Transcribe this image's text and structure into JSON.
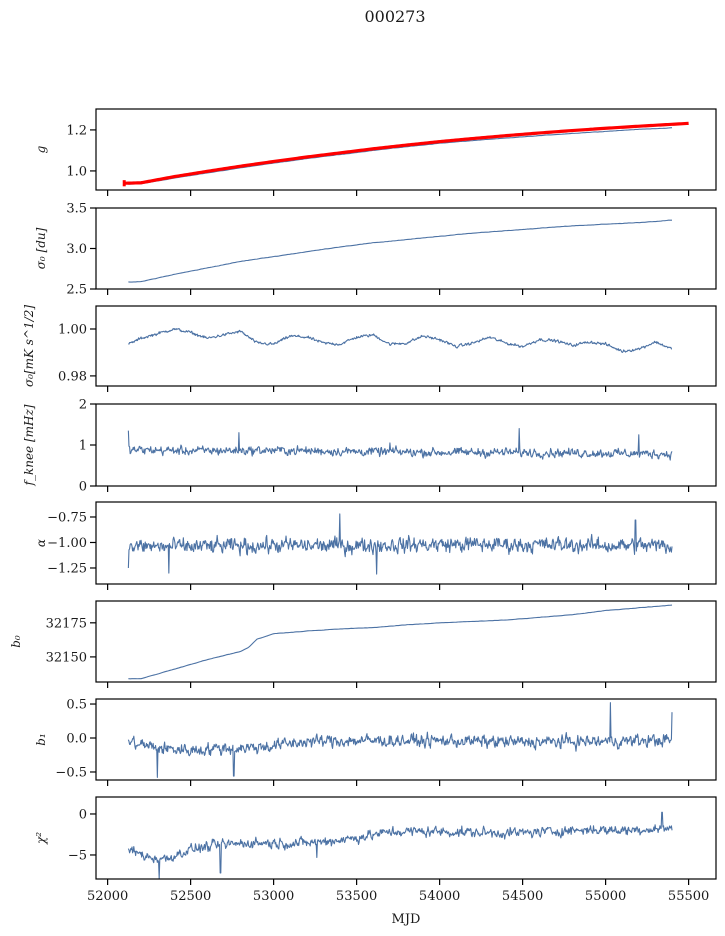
{
  "chart_data": {
    "type": "line",
    "title": "000273",
    "xlabel": "MJD",
    "xlim": [
      51930,
      55665
    ],
    "xticks": [
      52000,
      52500,
      53000,
      53500,
      54000,
      54500,
      55000,
      55500
    ],
    "xtick_labels": [
      "52000",
      "52500",
      "53000",
      "53500",
      "54000",
      "54500",
      "55000",
      "55500"
    ],
    "line_color": "#4c72a4",
    "overlay_color": "#ff0000",
    "panels": [
      {
        "id": "g",
        "ylabel": "g",
        "ylim": [
          0.907,
          1.302
        ],
        "yticks": [
          1.0,
          1.2
        ],
        "ytick_labels": [
          "1.0",
          "1.2"
        ],
        "series": [
          {
            "name": "g",
            "color": "#4c72a4",
            "x": [
              52125,
              52200,
              52400,
              52600,
              52800,
              53000,
              53200,
              53400,
              53600,
              53800,
              54000,
              54200,
              54400,
              54600,
              54800,
              55000,
              55200,
              55400
            ],
            "y": [
              0.935,
              0.937,
              0.965,
              0.99,
              1.015,
              1.038,
              1.06,
              1.08,
              1.1,
              1.118,
              1.135,
              1.148,
              1.16,
              1.172,
              1.183,
              1.193,
              1.203,
              1.21
            ],
            "noise": 0.001
          },
          {
            "name": "g-model",
            "color": "#ff0000",
            "x": [
              52100,
              52200,
              52400,
              52600,
              52800,
              53000,
              53200,
              53400,
              53600,
              53800,
              54000,
              54200,
              54400,
              54600,
              54800,
              55000,
              55200,
              55500
            ],
            "y": [
              0.94,
              0.942,
              0.972,
              0.998,
              1.023,
              1.046,
              1.068,
              1.088,
              1.108,
              1.126,
              1.143,
              1.158,
              1.172,
              1.185,
              1.197,
              1.208,
              1.218,
              1.232
            ],
            "errorbar": {
              "x": 52100,
              "y": 0.94,
              "err": 0.03
            },
            "noise": 0.0
          }
        ]
      },
      {
        "id": "sigma0-du",
        "ylabel": "σ₀ [du]",
        "ylim": [
          2.5,
          3.5
        ],
        "yticks": [
          2.5,
          3.0,
          3.5
        ],
        "ytick_labels": [
          "2.5",
          "3.0",
          "3.5"
        ],
        "series": [
          {
            "name": "sigma0_du",
            "color": "#4c72a4",
            "x": [
              52125,
              52200,
              52400,
              52600,
              52800,
              53000,
              53200,
              53400,
              53600,
              53800,
              54000,
              54200,
              54400,
              54600,
              54800,
              55000,
              55200,
              55400
            ],
            "y": [
              2.585,
              2.59,
              2.68,
              2.76,
              2.84,
              2.9,
              2.96,
              3.02,
              3.07,
              3.11,
              3.15,
              3.19,
              3.22,
              3.25,
              3.28,
              3.3,
              3.32,
              3.35
            ],
            "noise": 0.003
          }
        ]
      },
      {
        "id": "sigma0-mk",
        "ylabel": "σ₀[mK s^1/2]",
        "ylim": [
          0.9757,
          1.0098
        ],
        "yticks": [
          0.98,
          1.0
        ],
        "ytick_labels": [
          "0.98",
          "1.00"
        ],
        "series": [
          {
            "name": "sigma0_mK",
            "color": "#4c72a4",
            "x": [
              52125,
              52200,
              52300,
              52400,
              52500,
              52600,
              52700,
              52800,
              52900,
              53000,
              53100,
              53200,
              53300,
              53400,
              53500,
              53600,
              53700,
              53800,
              53900,
              54000,
              54100,
              54200,
              54300,
              54400,
              54500,
              54600,
              54700,
              54800,
              54900,
              55000,
              55100,
              55200,
              55300,
              55400
            ],
            "y": [
              0.9935,
              0.996,
              0.998,
              1.0,
              0.9985,
              0.996,
              0.9975,
              0.999,
              0.994,
              0.9935,
              0.997,
              0.9965,
              0.994,
              0.9935,
              0.9965,
              0.9975,
              0.9935,
              0.994,
              0.997,
              0.9955,
              0.9925,
              0.994,
              0.9965,
              0.994,
              0.9925,
              0.9955,
              0.995,
              0.993,
              0.9945,
              0.9935,
              0.9905,
              0.9915,
              0.9945,
              0.9915
            ],
            "noise": 0.0008
          }
        ]
      },
      {
        "id": "fknee",
        "ylabel": "f_knee [mHz]",
        "ylim": [
          0,
          2
        ],
        "yticks": [
          0,
          1,
          2
        ],
        "ytick_labels": [
          "0",
          "1",
          "2"
        ],
        "series": [
          {
            "name": "f_knee",
            "color": "#4c72a4",
            "x": [
              52125,
              52500,
              53000,
              53500,
              54000,
              54500,
              55000,
              55400
            ],
            "y": [
              0.88,
              0.86,
              0.87,
              0.84,
              0.82,
              0.82,
              0.8,
              0.78
            ],
            "noise": 0.14,
            "spikes": [
              [
                52125,
                1.35
              ],
              [
                52790,
                1.3
              ],
              [
                53700,
                1.05
              ],
              [
                54480,
                1.4
              ],
              [
                55200,
                1.25
              ]
            ]
          }
        ]
      },
      {
        "id": "alpha",
        "ylabel": "α",
        "ylim": [
          -1.407,
          -0.603
        ],
        "yticks": [
          -1.25,
          -1.0,
          -0.75
        ],
        "ytick_labels": [
          "−1.25",
          "−1.00",
          "−0.75"
        ],
        "series": [
          {
            "name": "alpha",
            "color": "#4c72a4",
            "x": [
              52125,
              52500,
              53000,
              53500,
              54000,
              54500,
              55000,
              55400
            ],
            "y": [
              -1.04,
              -1.04,
              -1.03,
              -1.03,
              -1.02,
              -1.02,
              -1.03,
              -1.03
            ],
            "noise": 0.1,
            "spikes": [
              [
                52125,
                -1.25
              ],
              [
                52370,
                -1.3
              ],
              [
                53400,
                -0.72
              ],
              [
                53620,
                -1.31
              ],
              [
                55180,
                -0.78
              ]
            ]
          }
        ]
      },
      {
        "id": "b0",
        "ylabel": "b₀",
        "ylim": [
          32131.6,
          32191
        ],
        "yticks": [
          32150,
          32175
        ],
        "ytick_labels": [
          "32150",
          "32175"
        ],
        "series": [
          {
            "name": "b0",
            "color": "#4c72a4",
            "x": [
              52125,
              52200,
              52400,
              52600,
              52800,
              52850,
              52900,
              53000,
              53200,
              53400,
              53600,
              53800,
              54000,
              54200,
              54400,
              54600,
              54800,
              55000,
              55200,
              55400
            ],
            "y": [
              32134,
              32134,
              32141,
              32148,
              32154,
              32157,
              32163,
              32167,
              32169,
              32170.5,
              32171.5,
              32173.5,
              32175,
              32176,
              32177,
              32179,
              32181,
              32184,
              32186,
              32188
            ],
            "noise": 0.15
          }
        ]
      },
      {
        "id": "b1",
        "ylabel": "b₁",
        "ylim": [
          -0.618,
          0.574
        ],
        "yticks": [
          -0.5,
          0.0,
          0.5
        ],
        "ytick_labels": [
          "−0.5",
          "0.0",
          "0.5"
        ],
        "series": [
          {
            "name": "b1",
            "color": "#4c72a4",
            "x": [
              52125,
              52300,
              52500,
              52700,
              52900,
              53200,
              53500,
              54000,
              54500,
              55000,
              55400
            ],
            "y": [
              -0.05,
              -0.15,
              -0.18,
              -0.15,
              -0.14,
              -0.05,
              -0.04,
              -0.04,
              -0.06,
              -0.05,
              -0.03
            ],
            "noise": 0.12,
            "spikes": [
              [
                52300,
                -0.58
              ],
              [
                52760,
                -0.56
              ],
              [
                55030,
                0.52
              ],
              [
                55400,
                0.38
              ]
            ]
          }
        ]
      },
      {
        "id": "chi2",
        "ylabel": "χ²",
        "ylim": [
          -7.93,
          2.07
        ],
        "yticks": [
          -5,
          0
        ],
        "ytick_labels": [
          "−5",
          "0"
        ],
        "series": [
          {
            "name": "chi2",
            "color": "#4c72a4",
            "x": [
              52125,
              52250,
              52350,
              52500,
              52700,
              52900,
              53100,
              53300,
              53500,
              53700,
              53900,
              54100,
              54300,
              54500,
              54700,
              54900,
              55100,
              55300,
              55400
            ],
            "y": [
              -4.3,
              -5.3,
              -5.5,
              -4.3,
              -3.7,
              -3.5,
              -3.6,
              -3.4,
              -2.9,
              -2.2,
              -2.1,
              -2.2,
              -2.3,
              -2.3,
              -2.1,
              -1.9,
              -2.0,
              -1.8,
              -1.7
            ],
            "noise": 0.8,
            "spikes": [
              [
                52310,
                -7.9
              ],
              [
                52680,
                -7.2
              ],
              [
                53260,
                -5.3
              ],
              [
                55340,
                0.2
              ]
            ]
          }
        ]
      }
    ]
  }
}
